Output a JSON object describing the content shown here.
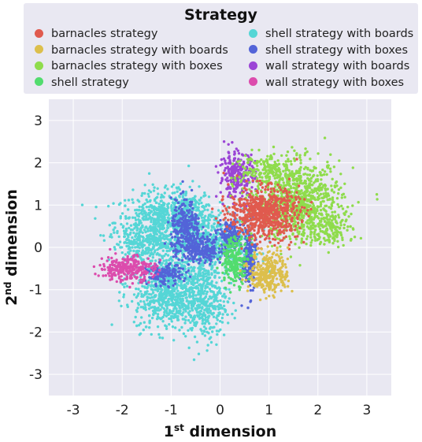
{
  "chart_data": {
    "type": "scatter",
    "legend": {
      "title": "Strategy",
      "placement": "top",
      "entries": [
        {
          "name": "barnacles strategy",
          "color": "#e05a4e"
        },
        {
          "name": "barnacles strategy with boards",
          "color": "#dcbf4c"
        },
        {
          "name": "barnacles strategy with boxes",
          "color": "#8fdc4c"
        },
        {
          "name": "shell strategy",
          "color": "#52dc6e"
        },
        {
          "name": "shell strategy with boards",
          "color": "#55d6d6"
        },
        {
          "name": "shell strategy with boxes",
          "color": "#5364d8"
        },
        {
          "name": "wall strategy with boards",
          "color": "#9b45d6"
        },
        {
          "name": "wall strategy with boxes",
          "color": "#dc4cad"
        }
      ]
    },
    "xlabel": {
      "base": "1",
      "sup": "st",
      "rest": " dimension"
    },
    "ylabel": {
      "base": "2",
      "sup": "nd",
      "rest": " dimension"
    },
    "xlim": [
      -3.5,
      3.5
    ],
    "ylim": [
      -3.5,
      3.5
    ],
    "xticks": [
      -3,
      -2,
      -1,
      0,
      1,
      2,
      3
    ],
    "yticks": [
      -3,
      -2,
      -1,
      0,
      1,
      2,
      3
    ],
    "grid": true,
    "plot_background": "#e9e8f2",
    "series": [
      {
        "name": "shell strategy with boards",
        "color": "#55d6d6",
        "clusters": [
          {
            "cx": -1.25,
            "cy": 0.6,
            "sx": 0.45,
            "sy": 0.35,
            "n": 500
          },
          {
            "cx": -0.3,
            "cy": 0.1,
            "sx": 0.55,
            "sy": 0.4,
            "n": 600
          },
          {
            "cx": -1.0,
            "cy": -0.85,
            "sx": 0.4,
            "sy": 0.35,
            "n": 400
          },
          {
            "cx": -1.05,
            "cy": -1.3,
            "sx": 0.35,
            "sy": 0.35,
            "n": 350
          },
          {
            "cx": -0.3,
            "cy": -1.3,
            "sx": 0.22,
            "sy": 0.45,
            "n": 300
          },
          {
            "cx": -0.75,
            "cy": 0.85,
            "sx": 0.3,
            "sy": 0.3,
            "n": 250
          },
          {
            "cx": -1.5,
            "cy": 0.1,
            "sx": 0.3,
            "sy": 0.2,
            "n": 200
          }
        ]
      },
      {
        "name": "shell strategy with boxes",
        "color": "#5364d8",
        "clusters": [
          {
            "cx": -0.7,
            "cy": 0.4,
            "sx": 0.15,
            "sy": 0.35,
            "n": 300
          },
          {
            "cx": -0.35,
            "cy": -0.05,
            "sx": 0.2,
            "sy": 0.15,
            "n": 200
          },
          {
            "cx": 0.2,
            "cy": 0.25,
            "sx": 0.12,
            "sy": 0.2,
            "n": 160
          },
          {
            "cx": 0.6,
            "cy": -0.25,
            "sx": 0.07,
            "sy": 0.42,
            "n": 200
          },
          {
            "cx": -1.15,
            "cy": -0.65,
            "sx": 0.18,
            "sy": 0.12,
            "n": 150
          }
        ]
      },
      {
        "name": "shell strategy",
        "color": "#52dc6e",
        "clusters": [
          {
            "cx": 0.3,
            "cy": -0.3,
            "sx": 0.14,
            "sy": 0.28,
            "n": 220
          }
        ]
      },
      {
        "name": "wall strategy with boxes",
        "color": "#dc4cad",
        "clusters": [
          {
            "cx": -1.9,
            "cy": -0.5,
            "sx": 0.28,
            "sy": 0.15,
            "n": 280
          }
        ]
      },
      {
        "name": "wall strategy with boards",
        "color": "#9b45d6",
        "clusters": [
          {
            "cx": 0.35,
            "cy": 1.7,
            "sx": 0.18,
            "sy": 0.28,
            "n": 260
          }
        ]
      },
      {
        "name": "barnacles strategy with boxes",
        "color": "#8fdc4c",
        "clusters": [
          {
            "cx": 1.6,
            "cy": 1.1,
            "sx": 0.45,
            "sy": 0.45,
            "n": 900
          },
          {
            "cx": 2.2,
            "cy": 0.45,
            "sx": 0.25,
            "sy": 0.2,
            "n": 150
          },
          {
            "cx": 0.85,
            "cy": 1.85,
            "sx": 0.3,
            "sy": 0.2,
            "n": 150
          }
        ]
      },
      {
        "name": "barnacles strategy",
        "color": "#e05a4e",
        "clusters": [
          {
            "cx": 0.9,
            "cy": 0.8,
            "sx": 0.35,
            "sy": 0.3,
            "n": 700
          }
        ]
      },
      {
        "name": "barnacles strategy with boards",
        "color": "#dcbf4c",
        "clusters": [
          {
            "cx": 1.0,
            "cy": -0.6,
            "sx": 0.2,
            "sy": 0.25,
            "n": 300
          }
        ]
      }
    ]
  }
}
